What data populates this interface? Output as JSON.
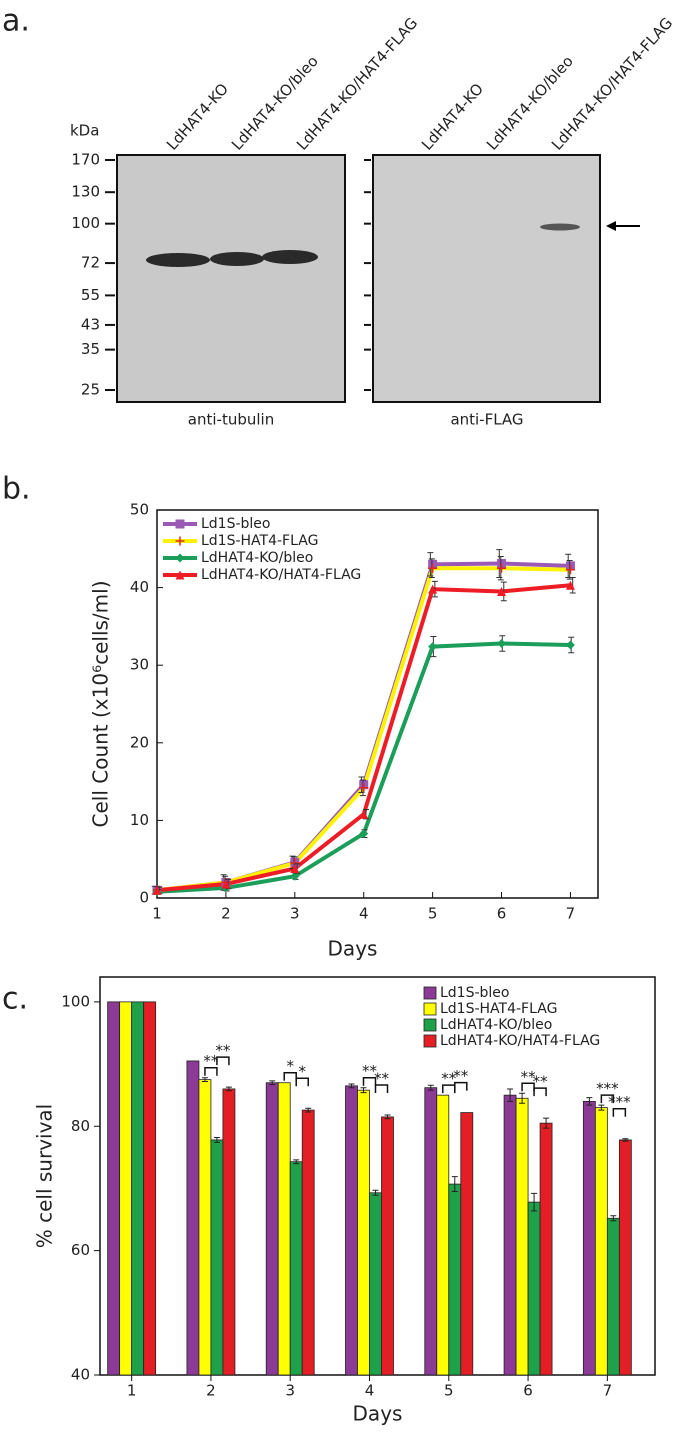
{
  "panel_labels": [
    "a.",
    "b.",
    "c."
  ],
  "blot": {
    "unit": "kDa",
    "markers": [
      170,
      130,
      100,
      72,
      55,
      43,
      35,
      25
    ],
    "lanes": [
      "LdHAT4-KO",
      "LdHAT4-KO/bleo",
      "LdHAT4-KO/HAT4-FLAG"
    ],
    "antibodies": [
      "anti-tubulin",
      "anti-FLAG"
    ]
  },
  "chart_data": [
    {
      "type": "line",
      "x": [
        1,
        2,
        3,
        4,
        5,
        6,
        7
      ],
      "x_label": "Days",
      "y_label": "Cell Count (x10⁶cells/ml)",
      "xlim": [
        1,
        7.4
      ],
      "xticks": [
        1,
        2,
        3,
        4,
        5,
        6,
        7
      ],
      "ylim": [
        0,
        50
      ],
      "yticks": [
        0,
        10,
        20,
        30,
        40,
        50
      ],
      "legend": "upper left",
      "series": [
        {
          "name": "Ld1S-bleo",
          "color": "#9b59b6",
          "marker": "square",
          "values": [
            1,
            2,
            4.6,
            14.6,
            43,
            43.1,
            42.8
          ],
          "errors": [
            0.5,
            1,
            0.8,
            1,
            1.5,
            1.8,
            1.5
          ]
        },
        {
          "name": "Ld1S-HAT4-FLAG",
          "color": "#fff200",
          "marker": "plus",
          "values": [
            1,
            2,
            4.5,
            14.2,
            42.5,
            42.5,
            42.3
          ],
          "errors": [
            0.5,
            0.8,
            0.8,
            1,
            1.2,
            1.5,
            1.2
          ]
        },
        {
          "name": "LdHAT4-KO/bleo",
          "color": "#1b9e5a",
          "marker": "diamond",
          "values": [
            0.8,
            1.3,
            2.8,
            8.3,
            32.4,
            32.8,
            32.6
          ],
          "errors": [
            0.3,
            0.4,
            0.4,
            0.5,
            1.3,
            1,
            1
          ]
        },
        {
          "name": "LdHAT4-KO/HAT4-FLAG",
          "color": "#ee1c25",
          "marker": "triangle",
          "values": [
            1,
            1.8,
            3.8,
            10.8,
            39.8,
            39.5,
            40.3
          ],
          "errors": [
            0.4,
            0.6,
            0.6,
            0.6,
            1,
            1.2,
            1
          ]
        }
      ]
    },
    {
      "type": "bar",
      "categories": [
        "1",
        "2",
        "3",
        "4",
        "5",
        "6",
        "7"
      ],
      "x_label": "Days",
      "y_label": "% cell survival",
      "ylim": [
        40,
        104
      ],
      "yticks": [
        40,
        60,
        80,
        100
      ],
      "legend": "upper right",
      "series": [
        {
          "name": "Ld1S-bleo",
          "color": "#8b3a96",
          "values": [
            100,
            90.5,
            87,
            86.5,
            86.2,
            85,
            84
          ],
          "errors": [
            0,
            0,
            0.3,
            0.3,
            0.4,
            1,
            0.6
          ]
        },
        {
          "name": "Ld1S-HAT4-FLAG",
          "color": "#ffff00",
          "values": [
            100,
            87.5,
            87,
            85.8,
            85,
            84.5,
            83
          ],
          "errors": [
            0,
            0.3,
            0,
            0.4,
            0,
            0.8,
            0.4
          ]
        },
        {
          "name": "LdHAT4-KO/bleo",
          "color": "#1fa04a",
          "values": [
            100,
            77.8,
            74.3,
            69.3,
            70.7,
            67.8,
            65.2
          ],
          "errors": [
            0,
            0.4,
            0.3,
            0.4,
            1.2,
            1.4,
            0.4
          ]
        },
        {
          "name": "LdHAT4-KO/HAT4-FLAG",
          "color": "#e31e24",
          "values": [
            100,
            86,
            82.6,
            81.5,
            82.2,
            80.5,
            77.8
          ],
          "errors": [
            0,
            0.3,
            0.3,
            0.3,
            0,
            0.8,
            0.2
          ]
        }
      ],
      "significance": [
        null,
        [
          "**",
          "**"
        ],
        [
          "*",
          "*"
        ],
        [
          "**",
          "**"
        ],
        [
          "**",
          "**"
        ],
        [
          "**",
          "**"
        ],
        [
          "***",
          "***"
        ]
      ]
    }
  ]
}
